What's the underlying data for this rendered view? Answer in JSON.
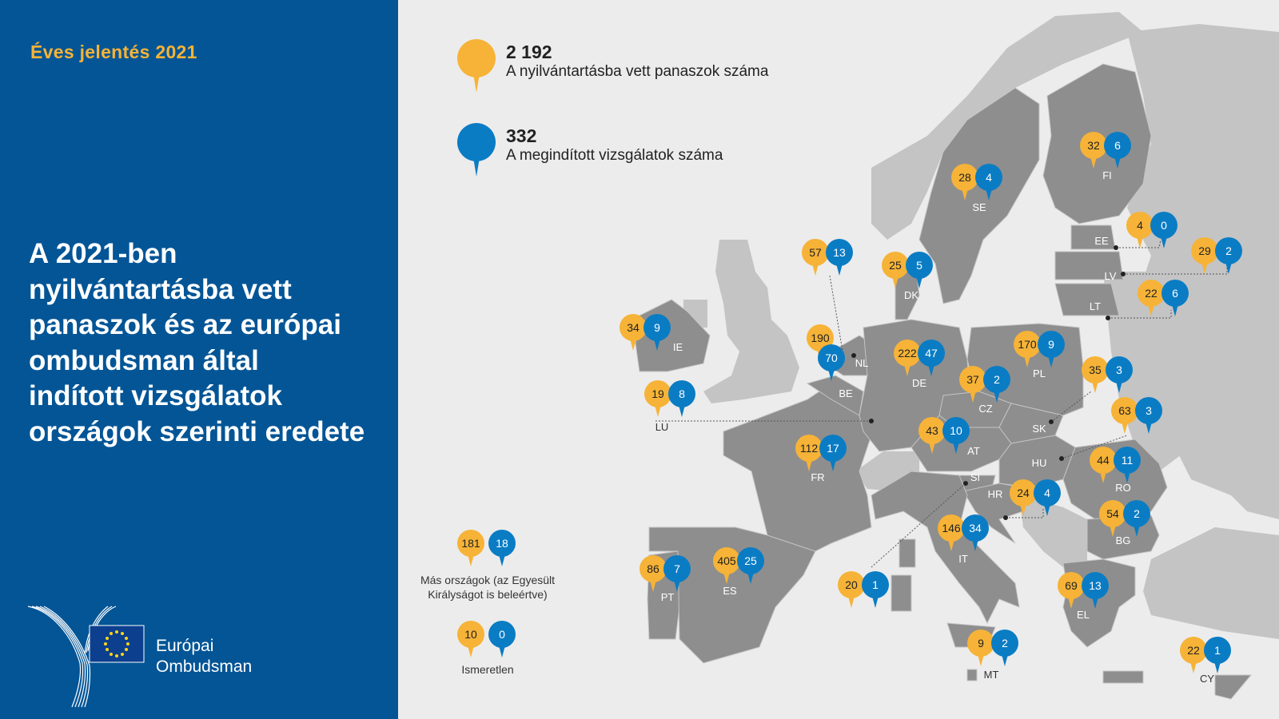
{
  "header": {
    "report_title": "Éves jelentés 2021",
    "heading_lines": [
      "A 2021-ben",
      "nyilvántartásba vett",
      "panaszok és az európai",
      "ombudsman által",
      "indított vizsgálatok",
      "országok szerinti eredete"
    ]
  },
  "logo": {
    "line1": "Európai",
    "line2": "Ombudsman"
  },
  "legend": {
    "complaints": {
      "value": "2 192",
      "label": "A nyilvántartásba vett panaszok száma",
      "color": "#f6b337"
    },
    "inquiries": {
      "value": "332",
      "label": "A megindított vizsgálatok száma",
      "color": "#0a7cc4"
    }
  },
  "colors": {
    "panel": "#035596",
    "complaint_pin": "#f6b337",
    "inquiry_pin": "#0a7cc4",
    "eu_country": "#8e8e8e",
    "non_eu_country": "#c4c4c4",
    "background": "#ececec"
  },
  "countries": [
    {
      "code": "IE",
      "complaints": "34",
      "inquiries": "9"
    },
    {
      "code": "LU",
      "complaints": "19",
      "inquiries": "8"
    },
    {
      "code": "NL",
      "complaints": "57",
      "inquiries": "13"
    },
    {
      "code": "BE",
      "complaints": "190",
      "inquiries": "70"
    },
    {
      "code": "DK",
      "complaints": "25",
      "inquiries": "5"
    },
    {
      "code": "DE",
      "complaints": "222",
      "inquiries": "47"
    },
    {
      "code": "SE",
      "complaints": "28",
      "inquiries": "4"
    },
    {
      "code": "FI",
      "complaints": "32",
      "inquiries": "6"
    },
    {
      "code": "EE",
      "complaints": "4",
      "inquiries": "0"
    },
    {
      "code": "LV",
      "complaints": "29",
      "inquiries": "2"
    },
    {
      "code": "LT",
      "complaints": "22",
      "inquiries": "6"
    },
    {
      "code": "PL",
      "complaints": "170",
      "inquiries": "9"
    },
    {
      "code": "CZ",
      "complaints": "37",
      "inquiries": "2"
    },
    {
      "code": "SK",
      "complaints": "35",
      "inquiries": "3"
    },
    {
      "code": "HU",
      "complaints": "63",
      "inquiries": "3"
    },
    {
      "code": "AT",
      "complaints": "43",
      "inquiries": "10"
    },
    {
      "code": "FR",
      "complaints": "112",
      "inquiries": "17"
    },
    {
      "code": "RO",
      "complaints": "44",
      "inquiries": "11"
    },
    {
      "code": "HR",
      "complaints": "24",
      "inquiries": "4"
    },
    {
      "code": "SI",
      "complaints": "20",
      "inquiries": "1"
    },
    {
      "code": "BG",
      "complaints": "54",
      "inquiries": "2"
    },
    {
      "code": "IT",
      "complaints": "146",
      "inquiries": "34"
    },
    {
      "code": "PT",
      "complaints": "86",
      "inquiries": "7"
    },
    {
      "code": "ES",
      "complaints": "405",
      "inquiries": "25"
    },
    {
      "code": "EL",
      "complaints": "69",
      "inquiries": "13"
    },
    {
      "code": "MT",
      "complaints": "9",
      "inquiries": "2"
    },
    {
      "code": "CY",
      "complaints": "22",
      "inquiries": "1"
    }
  ],
  "other": {
    "other_countries": {
      "complaints": "181",
      "inquiries": "18",
      "label_line1": "Más országok (az Egyesült",
      "label_line2": "Királyságot is beleértve)"
    },
    "unknown": {
      "complaints": "10",
      "inquiries": "0",
      "label": "Ismeretlen"
    }
  }
}
